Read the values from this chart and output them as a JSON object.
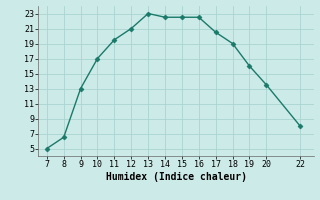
{
  "x": [
    7,
    8,
    9,
    10,
    11,
    12,
    13,
    14,
    15,
    16,
    17,
    18,
    19,
    20,
    22
  ],
  "y": [
    5,
    6.5,
    13,
    17,
    19.5,
    21,
    23,
    22.5,
    22.5,
    22.5,
    20.5,
    19,
    16,
    13.5,
    8
  ],
  "line_color": "#1a7a6a",
  "marker": "D",
  "marker_size": 2.5,
  "bg_color": "#cceae7",
  "grid_color": "#aad4d0",
  "xlabel": "Humidex (Indice chaleur)",
  "xlim": [
    6.5,
    22.8
  ],
  "ylim": [
    4,
    24
  ],
  "xticks": [
    7,
    8,
    9,
    10,
    11,
    12,
    13,
    14,
    15,
    16,
    17,
    18,
    19,
    20,
    22
  ],
  "yticks": [
    5,
    7,
    9,
    11,
    13,
    15,
    17,
    19,
    21,
    23
  ],
  "tick_fontsize": 6.0,
  "label_fontsize": 7.0
}
